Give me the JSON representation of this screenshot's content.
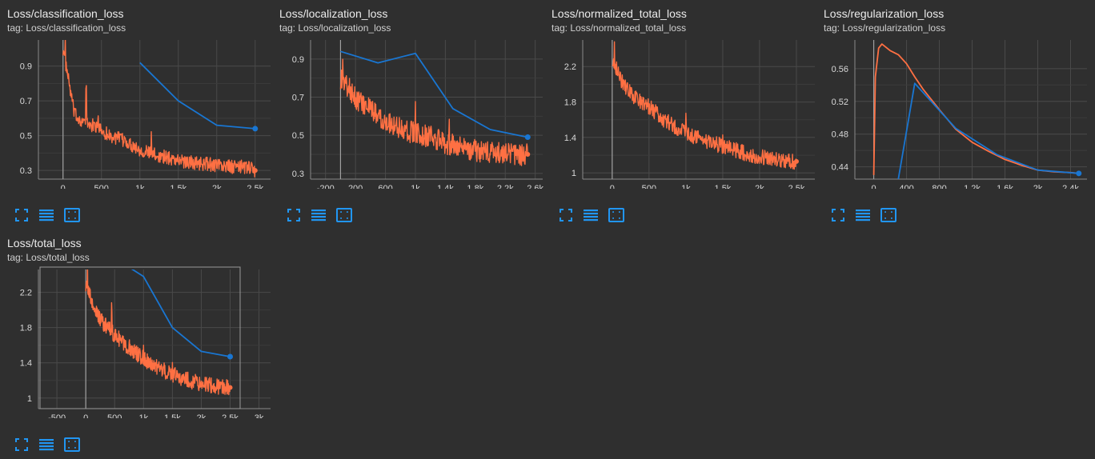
{
  "colors": {
    "background": "#2f2f2f",
    "grid": "#4a4a4a",
    "raw_series": "#ff7043",
    "smoothed_series": "#1976d2",
    "tool_icons": "#2196f3"
  },
  "tool_icons": [
    "fullscreen-icon",
    "toggle-lines-icon",
    "fit-domain-icon"
  ],
  "chart_data": [
    {
      "type": "line",
      "title": "Loss/classification_loss",
      "tag": "tag: Loss/classification_loss",
      "x_ticks": [
        "0",
        "500",
        "1k",
        "1.5k",
        "2k",
        "2.5k"
      ],
      "x_tick_values": [
        0,
        500,
        1000,
        1500,
        2000,
        2500
      ],
      "y_ticks": [
        "0.3",
        "0.5",
        "0.7",
        "0.9"
      ],
      "y_tick_values": [
        0.3,
        0.5,
        0.7,
        0.9
      ],
      "xlim": [
        -320,
        2700
      ],
      "ylim": [
        0.25,
        1.05
      ],
      "grid": true,
      "series": [
        {
          "x": [
            0,
            150,
            300,
            450,
            600,
            800,
            1000,
            1200,
            1400,
            1600,
            1800,
            2000,
            2200,
            2400,
            2500
          ],
          "y": [
            1.0,
            0.62,
            0.57,
            0.55,
            0.5,
            0.47,
            0.42,
            0.39,
            0.37,
            0.35,
            0.34,
            0.33,
            0.32,
            0.32,
            0.3
          ],
          "noise": 0.04,
          "spikes": [
            [
              30,
              0.1
            ],
            [
              300,
              0.2
            ],
            [
              460,
              0.1
            ],
            [
              1150,
              0.12
            ]
          ]
        },
        {
          "x": [
            1000,
            1500,
            2000,
            2500
          ],
          "y": [
            0.92,
            0.7,
            0.56,
            0.54
          ],
          "marker": true
        }
      ]
    },
    {
      "type": "line",
      "title": "Loss/localization_loss",
      "tag": "tag: Loss/localization_loss",
      "x_ticks": [
        "-200",
        "200",
        "600",
        "1k",
        "1.4k",
        "1.8k",
        "2.2k",
        "2.6k"
      ],
      "x_tick_values": [
        -200,
        200,
        600,
        1000,
        1400,
        1800,
        2200,
        2600
      ],
      "y_ticks": [
        "0.3",
        "0.5",
        "0.7",
        "0.9"
      ],
      "y_tick_values": [
        0.3,
        0.5,
        0.7,
        0.9
      ],
      "xlim": [
        -400,
        2700
      ],
      "ylim": [
        0.27,
        1.0
      ],
      "grid": true,
      "series": [
        {
          "x": [
            0,
            200,
            400,
            600,
            800,
            1000,
            1200,
            1400,
            1600,
            1800,
            2000,
            2200,
            2400,
            2500
          ],
          "y": [
            0.8,
            0.7,
            0.63,
            0.58,
            0.54,
            0.51,
            0.49,
            0.46,
            0.44,
            0.42,
            0.41,
            0.4,
            0.39,
            0.4
          ],
          "noise": 0.06,
          "spikes": [
            [
              30,
              0.15
            ],
            [
              1000,
              0.18
            ],
            [
              1450,
              0.12
            ]
          ]
        },
        {
          "x": [
            0,
            500,
            1000,
            1500,
            2000,
            2500
          ],
          "y": [
            0.94,
            0.88,
            0.93,
            0.64,
            0.53,
            0.49
          ],
          "marker": true
        }
      ]
    },
    {
      "type": "line",
      "title": "Loss/normalized_total_loss",
      "tag": "tag: Loss/normalized_total_loss",
      "x_ticks": [
        "0",
        "500",
        "1k",
        "1.5k",
        "2k",
        "2.5k"
      ],
      "x_tick_values": [
        0,
        500,
        1000,
        1500,
        2000,
        2500
      ],
      "y_ticks": [
        "1",
        "1.4",
        "1.8",
        "2.2"
      ],
      "y_tick_values": [
        1.0,
        1.4,
        1.8,
        2.2
      ],
      "xlim": [
        -400,
        2750
      ],
      "ylim": [
        0.93,
        2.5
      ],
      "grid": true,
      "series": [
        {
          "x": [
            0,
            150,
            300,
            500,
            700,
            900,
            1100,
            1300,
            1500,
            1700,
            1900,
            2100,
            2300,
            2500
          ],
          "y": [
            2.3,
            2.0,
            1.85,
            1.75,
            1.6,
            1.5,
            1.42,
            1.35,
            1.3,
            1.25,
            1.2,
            1.17,
            1.14,
            1.13
          ],
          "noise": 0.09,
          "spikes": [
            [
              30,
              0.25
            ],
            [
              1000,
              0.25
            ],
            [
              1500,
              0.15
            ]
          ]
        }
      ]
    },
    {
      "type": "line",
      "title": "Loss/regularization_loss",
      "tag": "tag: Loss/regularization_loss",
      "x_ticks": [
        "0",
        "400",
        "800",
        "1.2k",
        "1.6k",
        "2k",
        "2.4k"
      ],
      "x_tick_values": [
        0,
        400,
        800,
        1200,
        1600,
        2000,
        2400
      ],
      "y_ticks": [
        "0.44",
        "0.48",
        "0.52",
        "0.56"
      ],
      "y_tick_values": [
        0.44,
        0.48,
        0.52,
        0.56
      ],
      "xlim": [
        -230,
        2600
      ],
      "ylim": [
        0.425,
        0.595
      ],
      "grid": true,
      "series": [
        {
          "x": [
            0,
            20,
            60,
            100,
            200,
            300,
            400,
            500,
            600,
            800,
            1000,
            1200,
            1400,
            1600,
            1800,
            2000,
            2200,
            2400,
            2500
          ],
          "y": [
            0.43,
            0.55,
            0.585,
            0.59,
            0.582,
            0.577,
            0.566,
            0.55,
            0.535,
            0.51,
            0.486,
            0.47,
            0.459,
            0.449,
            0.442,
            0.436,
            0.434,
            0.433,
            0.432
          ]
        },
        {
          "x": [
            300,
            500,
            1000,
            1500,
            2000,
            2500
          ],
          "y": [
            0.425,
            0.542,
            0.487,
            0.455,
            0.436,
            0.432
          ],
          "marker": true
        }
      ]
    },
    {
      "type": "line",
      "title": "Loss/total_loss",
      "tag": "tag: Loss/total_loss",
      "x_ticks": [
        "-500",
        "0",
        "500",
        "1k",
        "1.5k",
        "2k",
        "2.5k",
        "3k"
      ],
      "x_tick_values": [
        -500,
        0,
        500,
        1000,
        1500,
        2000,
        2500,
        3000
      ],
      "y_ticks": [
        "1",
        "1.4",
        "1.8",
        "2.2"
      ],
      "y_tick_values": [
        1.0,
        1.4,
        1.8,
        2.2
      ],
      "xlim": [
        -820,
        3200
      ],
      "ylim": [
        0.88,
        2.46
      ],
      "grid": true,
      "series": [
        {
          "x": [
            0,
            150,
            300,
            500,
            700,
            900,
            1100,
            1300,
            1500,
            1700,
            1900,
            2100,
            2300,
            2500
          ],
          "y": [
            2.3,
            2.0,
            1.85,
            1.72,
            1.6,
            1.5,
            1.4,
            1.33,
            1.27,
            1.22,
            1.18,
            1.15,
            1.13,
            1.12
          ],
          "noise": 0.09,
          "spikes": [
            [
              30,
              0.25
            ],
            [
              450,
              0.3
            ],
            [
              1000,
              0.22
            ],
            [
              1500,
              0.15
            ]
          ]
        },
        {
          "x": [
            0,
            1000,
            1500,
            2000,
            2500
          ],
          "y": [
            2.8,
            2.38,
            1.8,
            1.53,
            1.47
          ],
          "marker": true
        }
      ]
    }
  ]
}
